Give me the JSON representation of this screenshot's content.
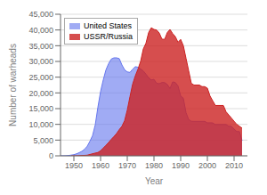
{
  "chart_data": {
    "type": "area",
    "xlabel": "Year",
    "ylabel": "Number of warheads",
    "xlim": [
      1945,
      2015
    ],
    "xticks": [
      1950,
      1960,
      1970,
      1980,
      1990,
      2000,
      2010
    ],
    "ylim": [
      0,
      45000
    ],
    "yticks": [
      0,
      {
        "value": 5000,
        "label": "5,000"
      },
      {
        "value": 10000,
        "label": "10,000"
      },
      {
        "value": 15000,
        "label": "15,000"
      },
      {
        "value": 20000,
        "label": "20,000"
      },
      {
        "value": 25000,
        "label": "25,000"
      },
      {
        "value": 30000,
        "label": "30,000"
      },
      {
        "value": 35000,
        "label": "35,000"
      },
      {
        "value": 40000,
        "label": "40,000"
      },
      {
        "value": 45000,
        "label": "45,000"
      }
    ],
    "grid": true,
    "legend": "upper left",
    "x": [
      1945,
      1946,
      1947,
      1948,
      1949,
      1950,
      1951,
      1952,
      1953,
      1954,
      1955,
      1956,
      1957,
      1958,
      1959,
      1960,
      1961,
      1962,
      1963,
      1964,
      1965,
      1966,
      1967,
      1968,
      1969,
      1970,
      1971,
      1972,
      1973,
      1974,
      1975,
      1976,
      1977,
      1978,
      1979,
      1980,
      1981,
      1982,
      1983,
      1984,
      1985,
      1986,
      1987,
      1988,
      1989,
      1990,
      1991,
      1992,
      1993,
      1994,
      1995,
      1996,
      1997,
      1998,
      1999,
      2000,
      2001,
      2002,
      2003,
      2004,
      2005,
      2006,
      2007,
      2008,
      2009,
      2010,
      2011,
      2012,
      2013
    ],
    "series": [
      {
        "name": "United States",
        "color": "#6677ee",
        "values": [
          6,
          11,
          32,
          110,
          235,
          369,
          640,
          1005,
          1436,
          2063,
          3057,
          4618,
          6444,
          9822,
          15468,
          20434,
          24111,
          27297,
          29300,
          30751,
          31139,
          31139,
          30893,
          28884,
          27359,
          26662,
          26522,
          27527,
          28335,
          28170,
          27571,
          26980,
          25956,
          24801,
          24107,
          24304,
          23031,
          22937,
          23305,
          23254,
          22695,
          21392,
          23490,
          23317,
          22217,
          19008,
          18306,
          13731,
          11536,
          10979,
          10953,
          10953,
          10953,
          10952,
          10952,
          10455,
          10502,
          10455,
          9938,
          9960,
          9960,
          9960,
          9960,
          9400,
          9400,
          8500,
          7700,
          7700,
          4804
        ]
      },
      {
        "name": "USSR/Russia",
        "color": "#cc2222",
        "values": [
          null,
          null,
          null,
          null,
          1,
          5,
          25,
          50,
          120,
          150,
          200,
          426,
          660,
          869,
          1060,
          1605,
          2471,
          3322,
          4238,
          5221,
          6129,
          7089,
          8339,
          9399,
          11176,
          14538,
          18776,
          22770,
          25393,
          27535,
          30062,
          33952,
          35804,
          39197,
          40723,
          40159,
          40007,
          39005,
          37072,
          37020,
          39197,
          40159,
          38859,
          37888,
          36100,
          37000,
          35000,
          31000,
          27000,
          23000,
          22500,
          22500,
          22500,
          22000,
          22000,
          21500,
          19000,
          17500,
          16000,
          16000,
          16000,
          16000,
          14000,
          13000,
          12000,
          11000,
          10000,
          9400,
          8800
        ]
      }
    ]
  }
}
